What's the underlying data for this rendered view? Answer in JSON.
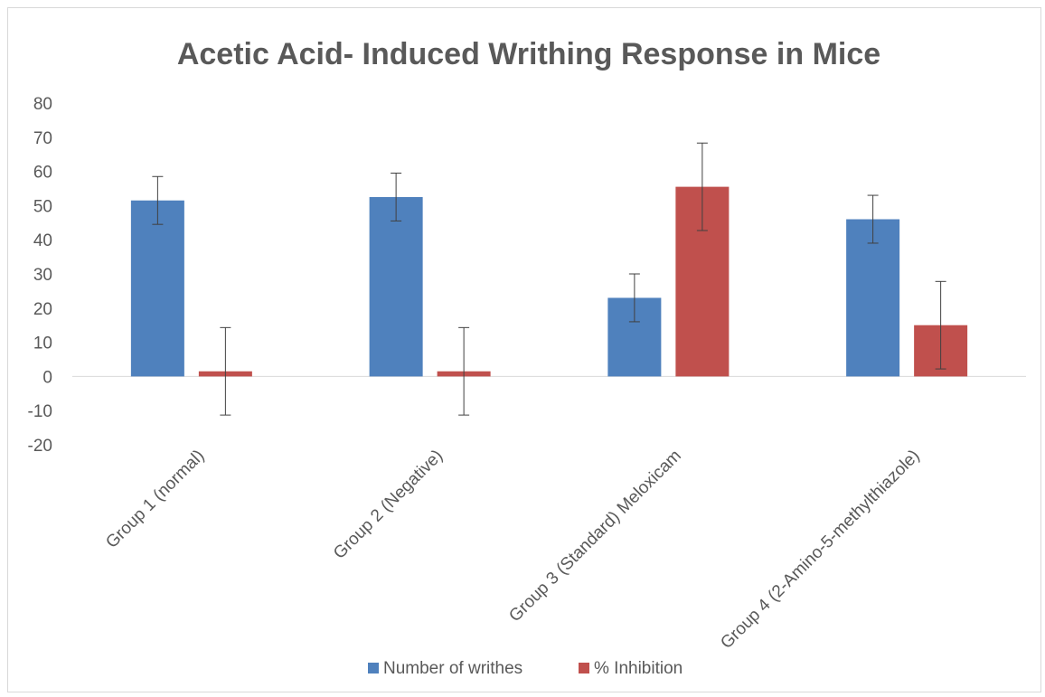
{
  "chart_data": {
    "type": "bar",
    "title": "Acetic Acid- Induced Writhing Response in Mice",
    "xlabel": "",
    "ylabel": "",
    "ylim": [
      -20,
      80
    ],
    "yticks": [
      80,
      70,
      60,
      50,
      40,
      30,
      20,
      10,
      0,
      -10,
      -20
    ],
    "grid": false,
    "legend_position": "bottom",
    "categories": [
      "Group 1 (normal)",
      "Group 2 (Negative)",
      "Group 3 (Standard) Meloxicam",
      "Group 4 (2-Amino-5-methylthiazole)"
    ],
    "series": [
      {
        "name": "Number of writhes",
        "color": "#4f81bd",
        "values": [
          51.5,
          52.5,
          23,
          46
        ],
        "error": [
          7,
          7,
          7,
          7
        ]
      },
      {
        "name": "% Inhibition",
        "color": "#c0504d",
        "values": [
          1.5,
          1.5,
          55.5,
          15
        ],
        "error": [
          12.8,
          12.8,
          12.8,
          12.8
        ]
      }
    ]
  }
}
